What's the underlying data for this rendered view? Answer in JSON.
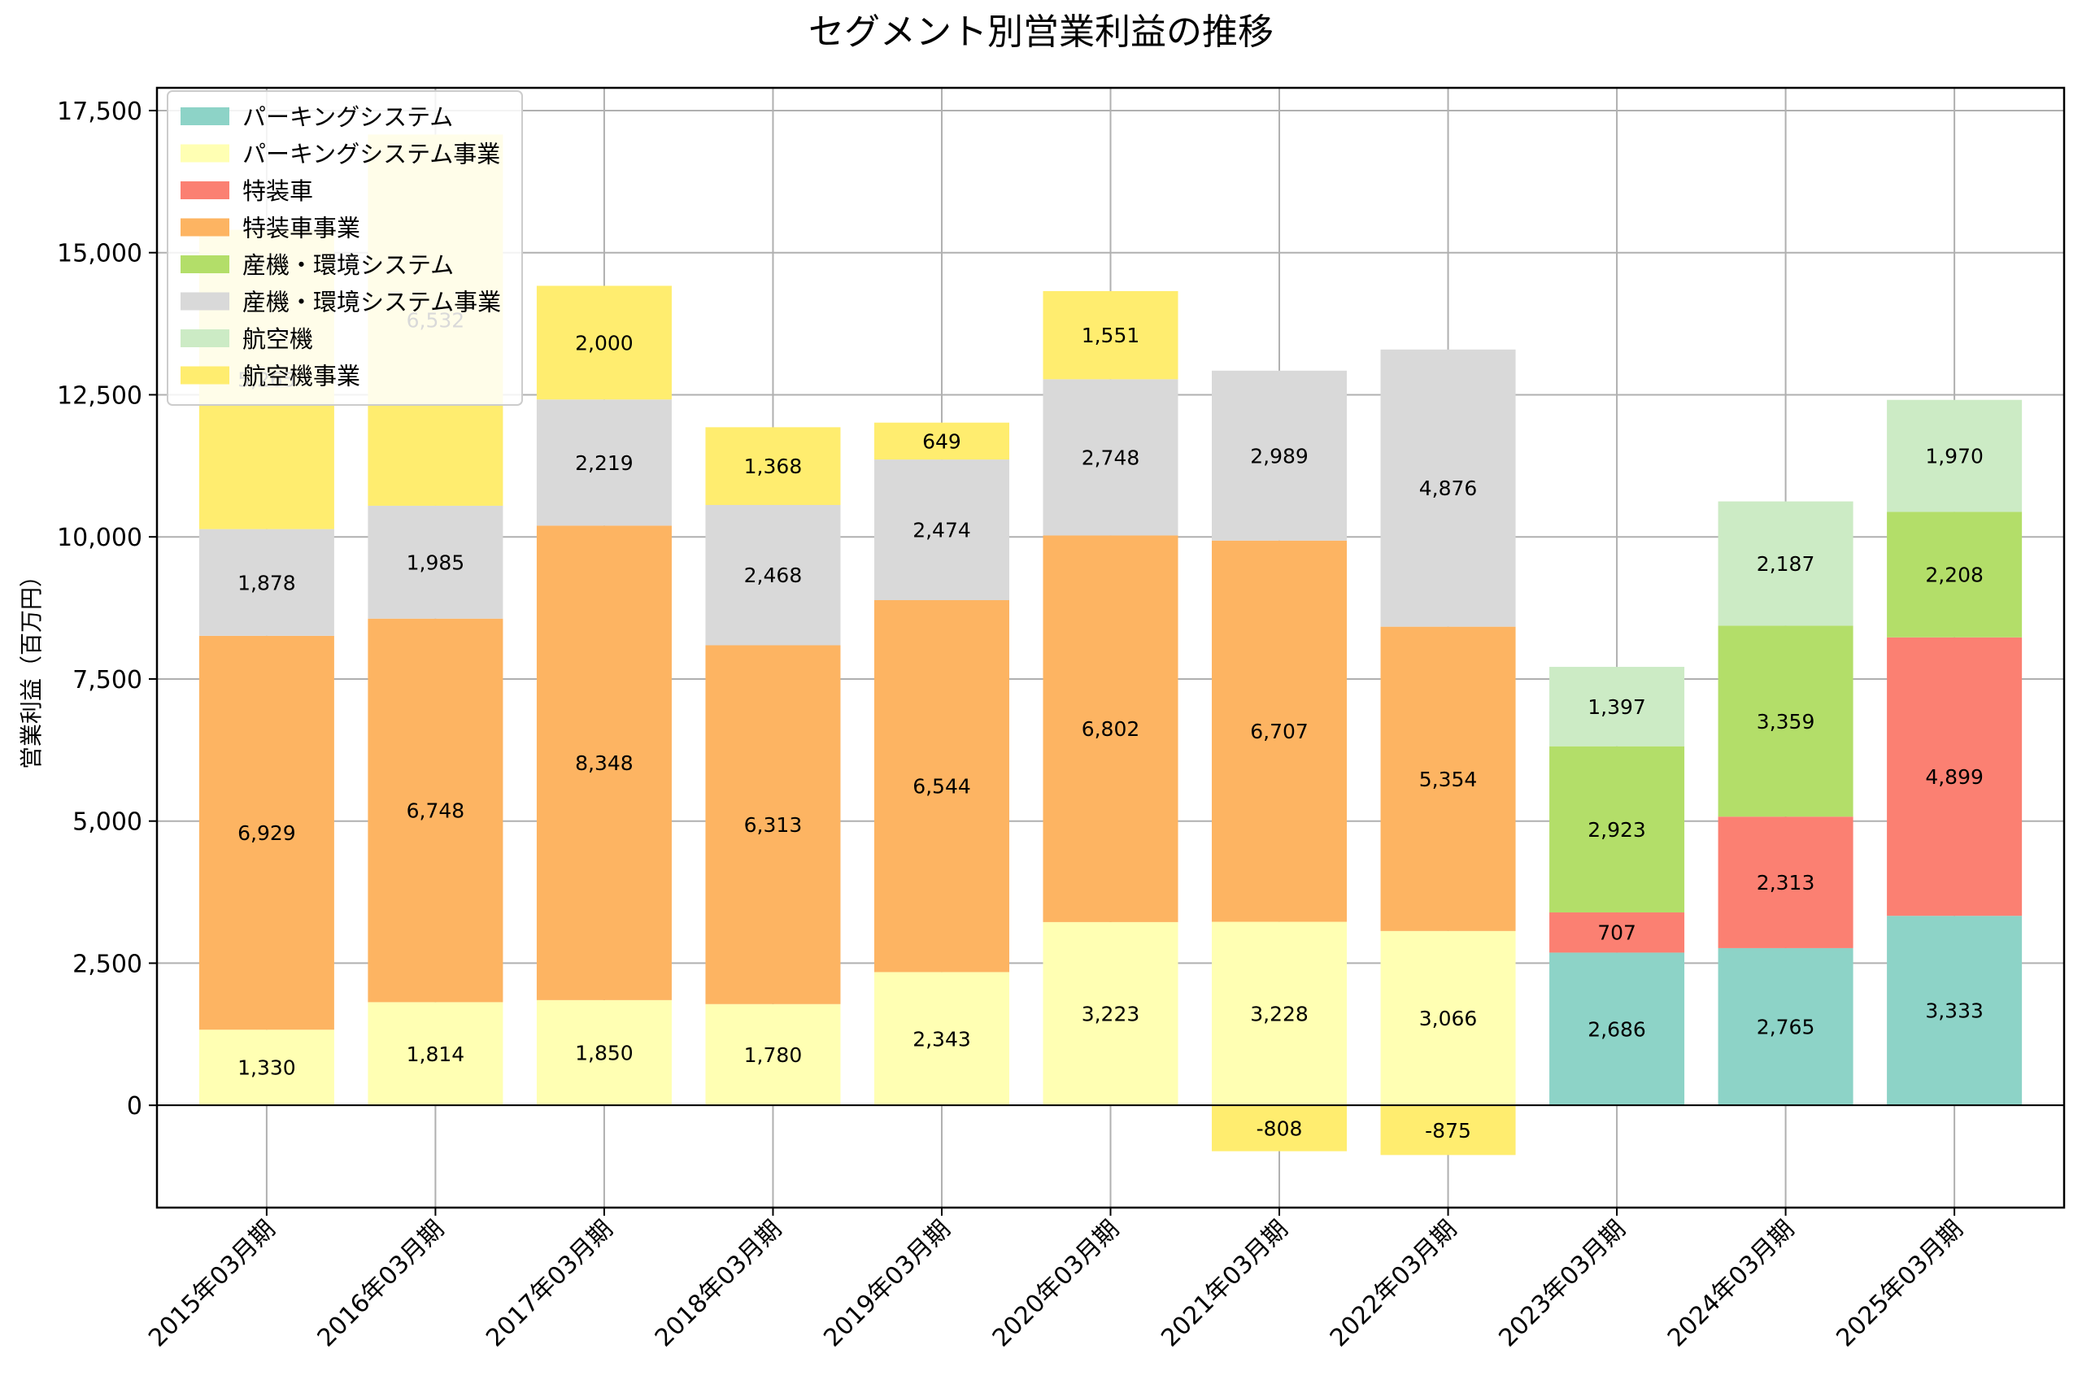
{
  "chart_data": {
    "type": "bar",
    "stacked": true,
    "title": "セグメント別営業利益の推移",
    "xlabel": "",
    "ylabel": "営業利益（百万円）",
    "ylim": [
      -1800,
      17900
    ],
    "yticks": [
      0,
      2500,
      5000,
      7500,
      10000,
      12500,
      15000,
      17500
    ],
    "ytick_labels": [
      "0",
      "2,500",
      "5,000",
      "7,500",
      "10,000",
      "12,500",
      "15,000",
      "17,500"
    ],
    "grid": true,
    "legend_position": "top-left",
    "categories": [
      "2015年03月期",
      "2016年03月期",
      "2017年03月期",
      "2018年03月期",
      "2019年03月期",
      "2020年03月期",
      "2021年03月期",
      "2022年03月期",
      "2023年03月期",
      "2024年03月期",
      "2025年03月期"
    ],
    "series": [
      {
        "name": "パーキングシステム",
        "color": "#8dd3c7",
        "values": [
          null,
          null,
          null,
          null,
          null,
          null,
          null,
          null,
          2686,
          2765,
          3333
        ]
      },
      {
        "name": "パーキングシステム事業",
        "color": "#ffffb3",
        "values": [
          1330,
          1814,
          1850,
          1780,
          2343,
          3223,
          3228,
          3066,
          null,
          null,
          null
        ]
      },
      {
        "name": "特装車",
        "color": "#fb8072",
        "values": [
          null,
          null,
          null,
          null,
          null,
          null,
          null,
          null,
          707,
          2313,
          4899
        ]
      },
      {
        "name": "特装車事業",
        "color": "#fdb462",
        "values": [
          6929,
          6748,
          8348,
          6313,
          6544,
          6802,
          6707,
          5354,
          null,
          null,
          null
        ]
      },
      {
        "name": "産機・環境システム",
        "color": "#b3de69",
        "values": [
          null,
          null,
          null,
          null,
          null,
          null,
          null,
          null,
          2923,
          3359,
          2208
        ]
      },
      {
        "name": "産機・環境システム事業",
        "color": "#d9d9d9",
        "values": [
          1878,
          1985,
          2219,
          2468,
          2474,
          2748,
          2989,
          4876,
          null,
          null,
          null
        ]
      },
      {
        "name": "航空機",
        "color": "#ccebc5",
        "values": [
          null,
          null,
          null,
          null,
          null,
          null,
          null,
          null,
          1397,
          2187,
          1970
        ]
      },
      {
        "name": "航空機事業",
        "color": "#ffed6f",
        "values": [
          5265,
          6532,
          2000,
          1368,
          649,
          1551,
          -808,
          -875,
          null,
          null,
          null
        ]
      }
    ],
    "data_labels": [
      [
        "",
        "1,330",
        "",
        "6,929",
        "",
        "1,878",
        "",
        "5,265"
      ],
      [
        "",
        "1,814",
        "",
        "6,748",
        "",
        "1,985",
        "",
        "6,532"
      ],
      [
        "",
        "1,850",
        "",
        "8,348",
        "",
        "2,219",
        "",
        "2,000"
      ],
      [
        "",
        "1,780",
        "",
        "6,313",
        "",
        "2,468",
        "",
        "1,368"
      ],
      [
        "",
        "2,343",
        "",
        "6,544",
        "",
        "2,474",
        "",
        "649"
      ],
      [
        "",
        "3,223",
        "",
        "6,802",
        "",
        "2,748",
        "",
        "1,551"
      ],
      [
        "",
        "3,228",
        "",
        "6,707",
        "",
        "2,989",
        "",
        "-808"
      ],
      [
        "",
        "3,066",
        "",
        "5,354",
        "",
        "4,876",
        "",
        "-875"
      ],
      [
        "2,686",
        "",
        "707",
        "",
        "2,923",
        "",
        "1,397",
        ""
      ],
      [
        "2,765",
        "",
        "2,313",
        "",
        "3,359",
        "",
        "2,187",
        ""
      ],
      [
        "3,333",
        "",
        "4,899",
        "",
        "2,208",
        "",
        "1,970",
        ""
      ]
    ]
  }
}
